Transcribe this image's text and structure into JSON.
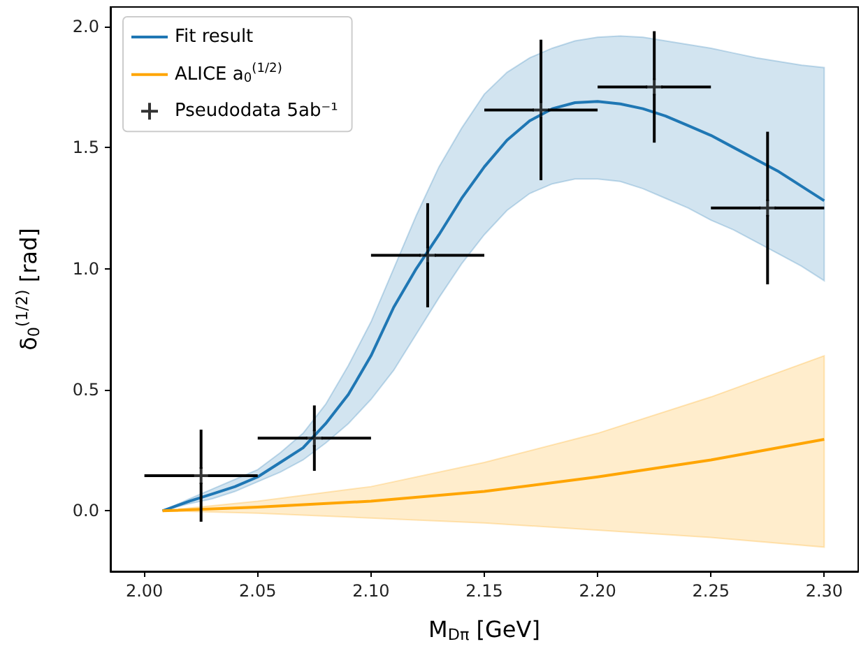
{
  "chart_data": {
    "type": "line",
    "xlabel": "M$_{Dπ}$ [GeV]",
    "ylabel": "δ$_{0}$$^{(1/2)}$ [rad]",
    "xlim": [
      1.985,
      2.315
    ],
    "ylim": [
      -0.25,
      2.08
    ],
    "xticks": [
      {
        "value": 2.0,
        "label": "2.00"
      },
      {
        "value": 2.05,
        "label": "2.05"
      },
      {
        "value": 2.1,
        "label": "2.10"
      },
      {
        "value": 2.15,
        "label": "2.15"
      },
      {
        "value": 2.2,
        "label": "2.20"
      },
      {
        "value": 2.25,
        "label": "2.25"
      },
      {
        "value": 2.3,
        "label": "2.30"
      }
    ],
    "yticks": [
      {
        "value": 0,
        "label": "0.0"
      },
      {
        "value": 0.5,
        "label": "0.5"
      },
      {
        "value": 1,
        "label": "1.0"
      },
      {
        "value": 1.5,
        "label": "1.5"
      },
      {
        "value": 2,
        "label": "2.0"
      }
    ],
    "legend": "top left",
    "series": [
      {
        "name": "Fit result",
        "color": "#1f77b4",
        "x": [
          2.008,
          2.02,
          2.03,
          2.04,
          2.05,
          2.06,
          2.07,
          2.08,
          2.09,
          2.1,
          2.11,
          2.12,
          2.13,
          2.14,
          2.15,
          2.16,
          2.17,
          2.18,
          2.19,
          2.2,
          2.21,
          2.22,
          2.23,
          2.24,
          2.25,
          2.26,
          2.27,
          2.28,
          2.29,
          2.3
        ],
        "values": [
          0,
          0.04,
          0.07,
          0.1,
          0.14,
          0.2,
          0.26,
          0.36,
          0.48,
          0.64,
          0.84,
          1.0,
          1.14,
          1.29,
          1.42,
          1.53,
          1.61,
          1.66,
          1.685,
          1.69,
          1.68,
          1.66,
          1.63,
          1.59,
          1.55,
          1.5,
          1.45,
          1.4,
          1.34,
          1.28
        ],
        "lower": [
          0,
          0.03,
          0.05,
          0.08,
          0.12,
          0.16,
          0.21,
          0.28,
          0.36,
          0.46,
          0.58,
          0.73,
          0.88,
          1.02,
          1.14,
          1.24,
          1.31,
          1.35,
          1.37,
          1.37,
          1.36,
          1.33,
          1.29,
          1.25,
          1.2,
          1.16,
          1.11,
          1.06,
          1.01,
          0.95
        ],
        "upper": [
          0,
          0.05,
          0.09,
          0.13,
          0.17,
          0.24,
          0.32,
          0.44,
          0.6,
          0.78,
          1.0,
          1.22,
          1.42,
          1.58,
          1.72,
          1.81,
          1.87,
          1.91,
          1.94,
          1.955,
          1.96,
          1.955,
          1.94,
          1.925,
          1.91,
          1.89,
          1.87,
          1.855,
          1.84,
          1.83
        ]
      },
      {
        "name": "ALICE a$_{0}$$^{(1/2)}$",
        "color": "#ffa500",
        "x": [
          2.008,
          2.05,
          2.1,
          2.15,
          2.2,
          2.25,
          2.3
        ],
        "values": [
          0,
          0.015,
          0.04,
          0.08,
          0.14,
          0.21,
          0.295
        ],
        "lower": [
          0,
          -0.01,
          -0.03,
          -0.05,
          -0.08,
          -0.11,
          -0.15
        ],
        "upper": [
          0,
          0.04,
          0.1,
          0.2,
          0.32,
          0.47,
          0.64
        ]
      },
      {
        "name": "Pseudodata 5ab⁻¹",
        "type": "scatter",
        "color": "#000000",
        "x": [
          2.025,
          2.075,
          2.125,
          2.175,
          2.225,
          2.275
        ],
        "values": [
          0.145,
          0.3,
          1.055,
          1.655,
          1.75,
          1.25
        ],
        "errors": [
          0.19,
          0.135,
          0.215,
          0.29,
          0.23,
          0.315
        ],
        "xerrors": [
          0.025,
          0.025,
          0.025,
          0.025,
          0.025,
          0.025
        ]
      }
    ]
  }
}
